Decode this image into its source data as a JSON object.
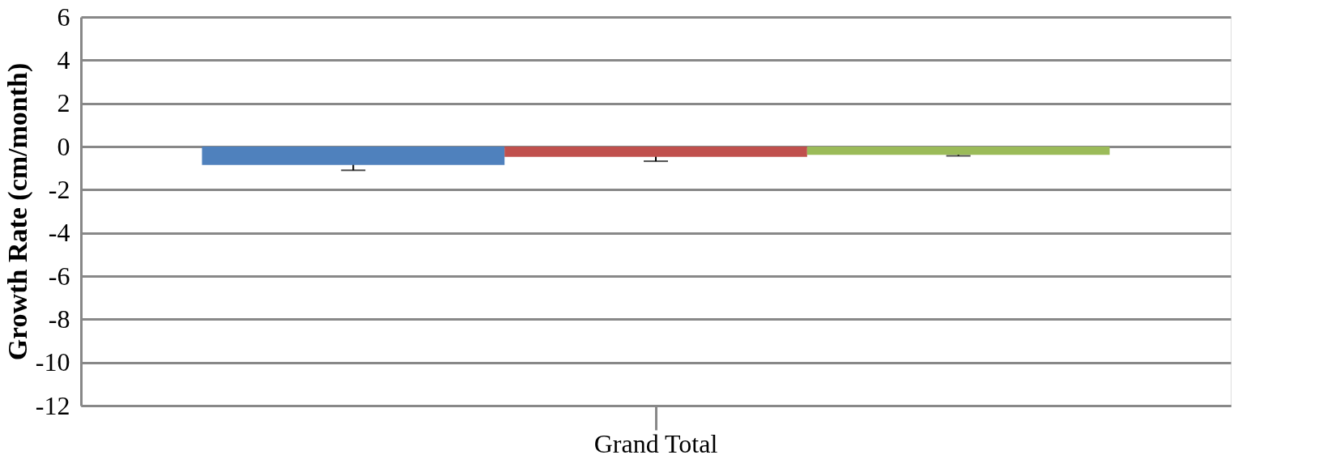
{
  "chart_data": {
    "type": "bar",
    "ylabel": "Growth Rate (cm/month)",
    "categories": [
      "Grand Total"
    ],
    "series": [
      {
        "color": "#4f81bd",
        "values": [
          -0.85
        ],
        "errors": [
          0.25
        ]
      },
      {
        "color": "#c0504d",
        "values": [
          -0.48
        ],
        "errors": [
          0.2
        ]
      },
      {
        "color": "#9bbb59",
        "values": [
          -0.38
        ],
        "errors": [
          0.05
        ]
      }
    ],
    "ylim": [
      -12,
      6
    ],
    "yticks": [
      -12,
      -10,
      -8,
      -6,
      -4,
      -2,
      0,
      2,
      4,
      6
    ],
    "grid": "y",
    "legend": false
  }
}
